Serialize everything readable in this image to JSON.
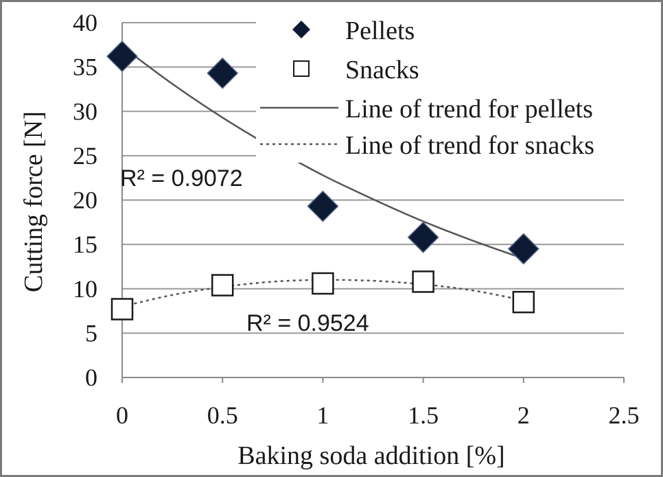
{
  "chart_data": {
    "type": "scatter",
    "xlabel": "Baking soda addition [%]",
    "ylabel": "Cutting force [N]",
    "xlim": [
      0,
      2.5
    ],
    "ylim": [
      0,
      40
    ],
    "x_ticks": [
      "0",
      "0.5",
      "1",
      "1.5",
      "2",
      "2.5"
    ],
    "y_ticks": [
      "0",
      "5",
      "10",
      "15",
      "20",
      "25",
      "30",
      "35",
      "40"
    ],
    "grid": "horizontal",
    "legend_position": "top-right",
    "series": [
      {
        "name": "Pellets",
        "marker": "filled-diamond",
        "color": "#0d1a33",
        "x": [
          0,
          0.5,
          1,
          1.5,
          2
        ],
        "y": [
          36.2,
          34.3,
          19.3,
          15.8,
          14.5
        ]
      },
      {
        "name": "Snacks",
        "marker": "open-square",
        "color": "#1a1a1a",
        "x": [
          0,
          0.5,
          1,
          1.5,
          2
        ],
        "y": [
          7.7,
          10.4,
          10.6,
          10.8,
          8.5
        ]
      }
    ],
    "trendlines": [
      {
        "name": "Line of trend for pellets",
        "style": "solid",
        "color": "#555555",
        "x": [
          0,
          0.25,
          0.5,
          0.75,
          1,
          1.25,
          1.5,
          1.75,
          2
        ],
        "y": [
          37.3,
          33.1,
          29.3,
          25.9,
          22.8,
          20.1,
          17.6,
          15.4,
          13.4
        ],
        "r2_label": "R² = 0.9072"
      },
      {
        "name": "Line of trend for snacks",
        "style": "dotted",
        "color": "#555555",
        "x": [
          0,
          0.25,
          0.5,
          0.75,
          1,
          1.25,
          1.5,
          1.75,
          2
        ],
        "y": [
          8.0,
          9.3,
          10.2,
          10.8,
          11.0,
          10.9,
          10.5,
          9.8,
          8.7
        ],
        "r2_label": "R² = 0.9524"
      }
    ]
  }
}
